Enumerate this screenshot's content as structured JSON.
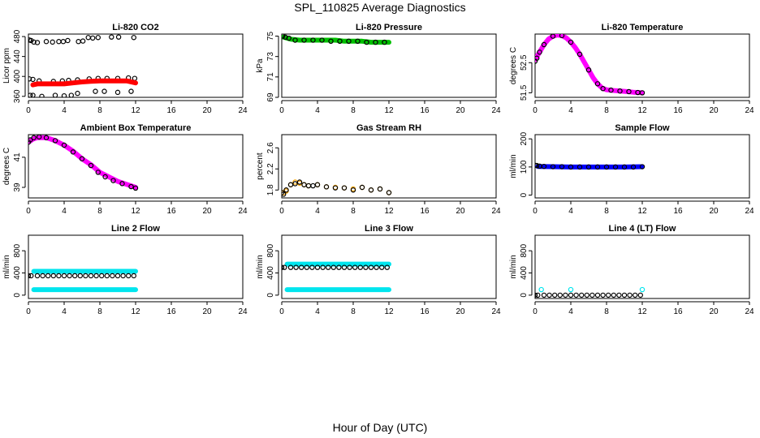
{
  "figure": {
    "title": "SPL_110825  Average Diagnostics",
    "xlabel": "Hour of Day (UTC)"
  },
  "chart_data": [
    {
      "type": "scatter",
      "title": "Li-820 CO2",
      "ylabel": "Licor ppm",
      "xlim": [
        0,
        24
      ],
      "xticks": [
        0,
        4,
        8,
        12,
        16,
        20,
        24
      ],
      "ylim": [
        358,
        485
      ],
      "yticks": [
        360,
        400,
        440,
        480
      ],
      "series": [
        {
          "marker": "open-circle",
          "color": "#000000",
          "x": [
            0.1,
            0.3,
            0.6,
            1.0,
            2.0,
            2.7,
            3.4,
            3.9,
            4.4,
            5.6,
            6.1,
            6.7,
            7.2,
            7.8,
            9.3,
            10.1,
            11.8,
            0.2,
            0.5,
            1.5,
            3.0,
            4.0,
            4.8,
            5.5,
            7.5,
            8.5,
            10.0,
            11.5
          ],
          "y": [
            473,
            472,
            469,
            468,
            470,
            469,
            470,
            470,
            472,
            470,
            471,
            478,
            477,
            478,
            479,
            479,
            478,
            362,
            362,
            360,
            362,
            361,
            362,
            366,
            370,
            370,
            368,
            370
          ]
        },
        {
          "marker": "open-circle",
          "color": "#000000",
          "x": [
            0.1,
            0.5,
            1.2,
            2.8,
            3.8,
            4.5,
            5.5,
            6.8,
            7.8,
            8.8,
            10.0,
            11.2,
            11.9
          ],
          "y": [
            395,
            394,
            391,
            390,
            391,
            392,
            393,
            395,
            396,
            396,
            396,
            397,
            396
          ]
        },
        {
          "marker": "filled-line",
          "color": "#ff0000",
          "x": [
            0.5,
            1.0,
            2.0,
            3.0,
            4.0,
            5.0,
            6.0,
            7.0,
            8.0,
            9.0,
            10.0,
            11.0,
            12.0
          ],
          "y": [
            383,
            385,
            385,
            385,
            385,
            387,
            389,
            390,
            391,
            391,
            391,
            391,
            387
          ]
        }
      ]
    },
    {
      "type": "scatter",
      "title": "Li-820 Pressure",
      "ylabel": "kPa",
      "xlim": [
        0,
        24
      ],
      "xticks": [
        0,
        4,
        8,
        12,
        16,
        20,
        24
      ],
      "ylim": [
        69,
        75.2
      ],
      "yticks": [
        69,
        71,
        73,
        75
      ],
      "series": [
        {
          "marker": "filled-line",
          "color": "#00c000",
          "x": [
            0.2,
            1,
            2,
            3,
            4,
            5,
            6,
            7,
            8,
            9,
            10,
            11,
            12
          ],
          "y": [
            74.9,
            74.7,
            74.6,
            74.6,
            74.6,
            74.6,
            74.6,
            74.5,
            74.5,
            74.5,
            74.4,
            74.4,
            74.4
          ]
        },
        {
          "marker": "open-circle",
          "color": "#000000",
          "x": [
            0.1,
            0.4,
            0.8,
            1.5,
            2.5,
            3.5,
            4.5,
            5.5,
            6.5,
            7.5,
            8.5,
            9.5,
            10.5,
            11.5
          ],
          "y": [
            75.0,
            74.9,
            74.8,
            74.6,
            74.6,
            74.6,
            74.6,
            74.5,
            74.5,
            74.5,
            74.5,
            74.4,
            74.4,
            74.4
          ]
        }
      ]
    },
    {
      "type": "scatter",
      "title": "Li-820 Temperature",
      "ylabel": "degrees C",
      "xlim": [
        0,
        24
      ],
      "xticks": [
        0,
        4,
        8,
        12,
        16,
        20,
        24
      ],
      "ylim": [
        51.35,
        53.45
      ],
      "yticks": [
        51.5,
        52.5
      ],
      "series": [
        {
          "marker": "filled-line",
          "color": "#ff00ff",
          "x": [
            0,
            0.5,
            1,
            1.5,
            2,
            2.5,
            3,
            3.5,
            4,
            4.5,
            5,
            5.5,
            6,
            6.5,
            7,
            7.5,
            8,
            9,
            10,
            11,
            12
          ],
          "y": [
            52.6,
            52.85,
            53.1,
            53.28,
            53.38,
            53.42,
            53.4,
            53.32,
            53.18,
            53.0,
            52.78,
            52.52,
            52.26,
            52.0,
            51.8,
            51.66,
            51.6,
            51.57,
            51.55,
            51.52,
            51.5
          ]
        },
        {
          "marker": "open-circle",
          "color": "#000000",
          "x": [
            0,
            0.2,
            0.5,
            1,
            2,
            3,
            4,
            5,
            6,
            7,
            7.6,
            8.5,
            9.5,
            10.5,
            11.5,
            12
          ],
          "y": [
            52.55,
            52.65,
            52.85,
            53.1,
            53.38,
            53.4,
            53.18,
            52.78,
            52.26,
            51.8,
            51.64,
            51.59,
            51.56,
            51.54,
            51.51,
            51.5
          ]
        }
      ]
    },
    {
      "type": "scatter",
      "title": "Ambient Box Temperature",
      "ylabel": "degrees C",
      "xlim": [
        0,
        24
      ],
      "xticks": [
        0,
        4,
        8,
        12,
        16,
        20,
        24
      ],
      "ylim": [
        38.3,
        42.5
      ],
      "yticks": [
        39,
        41
      ],
      "series": [
        {
          "marker": "filled-line",
          "color": "#ff00ff",
          "x": [
            0,
            0.5,
            1,
            1.5,
            2,
            3,
            4,
            5,
            6,
            7,
            8,
            9,
            10,
            11,
            12
          ],
          "y": [
            42.0,
            42.2,
            42.3,
            42.3,
            42.3,
            42.1,
            41.8,
            41.4,
            40.9,
            40.5,
            40.0,
            39.7,
            39.4,
            39.2,
            39.0
          ]
        },
        {
          "marker": "open-circle",
          "color": "#000000",
          "x": [
            0,
            0.2,
            0.6,
            1.2,
            2,
            3,
            4,
            5,
            6,
            7,
            7.8,
            8.6,
            9.5,
            10.5,
            11.5,
            12
          ],
          "y": [
            42.0,
            42.15,
            42.3,
            42.35,
            42.3,
            42.1,
            41.8,
            41.35,
            40.9,
            40.45,
            40.0,
            39.7,
            39.45,
            39.25,
            39.05,
            38.95
          ]
        }
      ]
    },
    {
      "type": "scatter",
      "title": "Gas Stream RH",
      "ylabel": "percent",
      "xlim": [
        0,
        24
      ],
      "xticks": [
        0,
        4,
        8,
        12,
        16,
        20,
        24
      ],
      "ylim": [
        1.65,
        2.85
      ],
      "yticks": [
        1.8,
        2.2,
        2.6
      ],
      "series": [
        {
          "marker": "open-circle",
          "color": "#ffa500",
          "x": [
            0.2,
            0.5,
            1,
            1.5,
            2,
            2.5,
            3,
            4,
            5,
            6,
            7,
            8,
            9,
            10,
            11,
            12
          ],
          "y": [
            1.75,
            1.78,
            1.9,
            1.95,
            1.93,
            1.9,
            1.88,
            1.9,
            1.86,
            1.85,
            1.84,
            1.82,
            1.85,
            1.8,
            1.82,
            1.75
          ]
        },
        {
          "marker": "open-circle",
          "color": "#000000",
          "x": [
            0,
            0.2,
            0.5,
            1,
            1.5,
            2,
            2.5,
            3,
            3.5,
            4,
            5,
            6,
            7,
            8,
            9,
            10,
            11,
            12
          ],
          "y": [
            1.75,
            1.72,
            1.8,
            1.9,
            1.92,
            1.95,
            1.9,
            1.88,
            1.88,
            1.9,
            1.86,
            1.84,
            1.84,
            1.8,
            1.85,
            1.8,
            1.82,
            1.75
          ]
        }
      ]
    },
    {
      "type": "scatter",
      "title": "Sample Flow",
      "ylabel": "ml/min",
      "xlim": [
        0,
        24
      ],
      "xticks": [
        0,
        4,
        8,
        12,
        16,
        20,
        24
      ],
      "ylim": [
        -10,
        215
      ],
      "yticks": [
        0,
        100,
        200
      ],
      "series": [
        {
          "marker": "filled-line",
          "color": "#0000ff",
          "x": [
            0.3,
            2,
            4,
            6,
            8,
            10,
            12
          ],
          "y": [
            102,
            101,
            100,
            100,
            100,
            100,
            101
          ]
        },
        {
          "marker": "open-circle",
          "color": "#000000",
          "x": [
            0,
            0.2,
            0.5,
            1,
            2,
            3,
            4,
            5,
            6,
            7,
            8,
            9,
            10,
            11,
            12
          ],
          "y": [
            106,
            105,
            103,
            102,
            101,
            101,
            100,
            100,
            100,
            100,
            100,
            100,
            100,
            100,
            101
          ]
        }
      ]
    },
    {
      "type": "scatter",
      "title": "Line 2 Flow",
      "ylabel": "ml/min",
      "xlim": [
        0,
        24
      ],
      "xticks": [
        0,
        4,
        8,
        12,
        16,
        20,
        24
      ],
      "ylim": [
        -60,
        1080
      ],
      "yticks": [
        0,
        400,
        800
      ],
      "series": [
        {
          "marker": "filled-line",
          "color": "#00e5ee",
          "x": [
            0.6,
            12
          ],
          "y": [
            430,
            430
          ]
        },
        {
          "marker": "filled-line",
          "color": "#00e5ee",
          "x": [
            0.6,
            12
          ],
          "y": [
            100,
            100
          ]
        },
        {
          "marker": "open-circle",
          "color": "#000000",
          "x": [
            0,
            0.3,
            1,
            1.6,
            2.2,
            2.8,
            3.4,
            4,
            4.6,
            5.2,
            5.8,
            6.4,
            7,
            7.6,
            8.2,
            8.8,
            9.4,
            10,
            10.6,
            11.2,
            11.8
          ],
          "y": [
            350,
            350,
            350,
            350,
            350,
            350,
            350,
            350,
            350,
            350,
            350,
            350,
            350,
            350,
            350,
            350,
            350,
            350,
            350,
            350,
            350
          ]
        }
      ]
    },
    {
      "type": "scatter",
      "title": "Line 3 Flow",
      "ylabel": "ml/min",
      "xlim": [
        0,
        24
      ],
      "xticks": [
        0,
        4,
        8,
        12,
        16,
        20,
        24
      ],
      "ylim": [
        -60,
        1080
      ],
      "yticks": [
        0,
        400,
        800
      ],
      "series": [
        {
          "marker": "filled-line",
          "color": "#00e5ee",
          "x": [
            0.6,
            12
          ],
          "y": [
            560,
            560
          ]
        },
        {
          "marker": "filled-line",
          "color": "#00e5ee",
          "x": [
            0.6,
            12
          ],
          "y": [
            100,
            100
          ]
        },
        {
          "marker": "open-circle",
          "color": "#000000",
          "x": [
            0,
            0.3,
            1,
            1.6,
            2.2,
            2.8,
            3.4,
            4,
            4.6,
            5.2,
            5.8,
            6.4,
            7,
            7.6,
            8.2,
            8.8,
            9.4,
            10,
            10.6,
            11.2,
            11.8
          ],
          "y": [
            500,
            500,
            500,
            500,
            500,
            500,
            500,
            500,
            500,
            500,
            500,
            500,
            500,
            500,
            500,
            500,
            500,
            500,
            500,
            500,
            500
          ]
        }
      ]
    },
    {
      "type": "scatter",
      "title": "Line 4 (LT) Flow",
      "ylabel": "ml/min",
      "xlim": [
        0,
        24
      ],
      "xticks": [
        0,
        4,
        8,
        12,
        16,
        20,
        24
      ],
      "ylim": [
        -60,
        1080
      ],
      "yticks": [
        0,
        400,
        800
      ],
      "series": [
        {
          "marker": "open-circle",
          "color": "#00e5ee",
          "x": [
            0.7,
            4,
            12
          ],
          "y": [
            100,
            100,
            100
          ]
        },
        {
          "marker": "open-circle",
          "color": "#000000",
          "x": [
            0,
            0.3,
            1,
            1.6,
            2.2,
            2.8,
            3.4,
            4,
            4.6,
            5.2,
            5.8,
            6.4,
            7,
            7.6,
            8.2,
            8.8,
            9.4,
            10,
            10.6,
            11.2,
            11.8
          ],
          "y": [
            0,
            0,
            0,
            0,
            0,
            0,
            0,
            0,
            0,
            0,
            0,
            0,
            0,
            0,
            0,
            0,
            0,
            0,
            0,
            0,
            0
          ]
        }
      ]
    }
  ]
}
